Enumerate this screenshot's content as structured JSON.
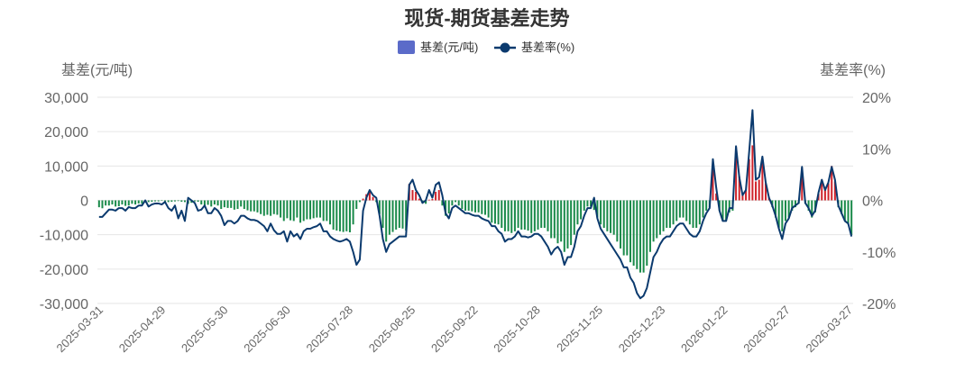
{
  "chart_data": {
    "type": "bar+line",
    "title": "现货-期货基差走势",
    "legend": {
      "placement": "top-center",
      "items": [
        {
          "label": "基差(元/吨)",
          "kind": "bar"
        },
        {
          "label": "基差率(%)",
          "kind": "line"
        }
      ]
    },
    "y_left": {
      "name": "基差(元/吨)",
      "range": [
        -30000,
        30000
      ],
      "ticks": [
        "30,000",
        "20,000",
        "10,000",
        "0",
        "-10,000",
        "-20,000",
        "-30,000"
      ]
    },
    "y_right": {
      "name": "基差率(%)",
      "range": [
        -20,
        20
      ],
      "ticks": [
        "20%",
        "10%",
        "0%",
        "-10%",
        "-20%"
      ]
    },
    "x_ticks": [
      "2025-03-31",
      "2025-04-29",
      "2025-05-30",
      "2025-06-30",
      "2025-07-28",
      "2025-08-25",
      "2025-09-22",
      "2025-10-28",
      "2025-11-25",
      "2025-12-23",
      "2026-01-22",
      "2026-02-27",
      "2026-03-27"
    ],
    "colors": {
      "positive_bar": "#d0242b",
      "negative_bar": "#1a8a4a",
      "line": "#0b3a6e",
      "legend_bar": "#5b6bc9"
    },
    "series": [
      {
        "name": "基差(元/吨)",
        "type": "bar",
        "values": [
          -2000,
          -2300,
          -1500,
          -1500,
          -1200,
          -1800,
          -1700,
          -1200,
          -1600,
          -1500,
          -1000,
          -1200,
          -900,
          -1000,
          -600,
          -500,
          -400,
          -300,
          -300,
          -100,
          -300,
          -500,
          -400,
          -300,
          -200,
          -400,
          -500,
          -1000,
          -700,
          -300,
          -400,
          -1200,
          -1500,
          -1300,
          -1800,
          -1200,
          -1500,
          -2500,
          -2000,
          -2200,
          -2200,
          -2700,
          -2500,
          -1800,
          -2500,
          -2900,
          -3200,
          -3200,
          -3500,
          -4000,
          -4500,
          -4200,
          -4500,
          -4000,
          -4200,
          -5000,
          -6000,
          -5200,
          -5800,
          -6000,
          -5000,
          -6500,
          -6000,
          -5500,
          -5500,
          -5200,
          -5000,
          -5000,
          -6000,
          -6000,
          -7000,
          -8500,
          -8800,
          -9000,
          -9200,
          -9000,
          -9300,
          -7000,
          -2500,
          -500,
          500,
          1800,
          2500,
          1000,
          -500,
          -4000,
          -8000,
          -12000,
          -10000,
          -9200,
          -8500,
          -8000,
          -8200,
          -8800,
          4800,
          3000,
          2500,
          500,
          -500,
          -1000,
          200,
          400,
          2500,
          3000,
          -1500,
          -4500,
          -3800,
          -1500,
          -500,
          -1500,
          -2500,
          -3000,
          -3000,
          -3200,
          -3500,
          -3500,
          -4000,
          -4200,
          -5000,
          -6500,
          -6800,
          -7000,
          -8000,
          -9000,
          -9000,
          -9500,
          -9000,
          -8000,
          -8500,
          -8500,
          -8800,
          -9500,
          -9000,
          -8500,
          -8000,
          -8000,
          -9000,
          -11000,
          -11000,
          -12500,
          -12000,
          -15000,
          -14000,
          -13000,
          -10000,
          -7000,
          -5500,
          -3000,
          -1800,
          -1800,
          -2800,
          -5000,
          -7000,
          -8000,
          -9000,
          -9500,
          -10000,
          -12000,
          -14000,
          -16000,
          -16000,
          -18000,
          -19000,
          -20000,
          -21000,
          -21000,
          -19000,
          -15000,
          -12000,
          -11000,
          -10000,
          -9000,
          -8000,
          -8000,
          -7000,
          -6000,
          -5000,
          -5000,
          -6000,
          -7000,
          -8000,
          -8000,
          -7000,
          -5000,
          -3000,
          -2000,
          10000,
          2000,
          -3000,
          -6000,
          -6000,
          -3500,
          -3000,
          15500,
          7000,
          2000,
          3000,
          12000,
          16000,
          5500,
          6000,
          11000,
          5000,
          1000,
          -2000,
          -5000,
          -8000,
          -9000,
          -6000,
          -5000,
          -3000,
          -2000,
          -1000,
          9500,
          -1000,
          -3000,
          -5000,
          -3500,
          2000,
          6000,
          3000,
          5000,
          10000,
          5500,
          -2000,
          -4000,
          -6000,
          -7000,
          -10000
        ]
      },
      {
        "name": "基差率(%)",
        "type": "line",
        "values": [
          -3.2,
          -3.2,
          -2.5,
          -1.8,
          -1.8,
          -2.0,
          -1.5,
          -1.5,
          -2.0,
          -1.3,
          -1.5,
          -1.5,
          -1.0,
          -1.0,
          0.0,
          -1.2,
          -0.8,
          -0.6,
          -0.6,
          -0.8,
          -0.3,
          -1.5,
          -2.0,
          -1.0,
          -3.5,
          -2.0,
          -4.0,
          0.5,
          0.0,
          -0.5,
          -2.0,
          -1.8,
          -1.0,
          -2.5,
          -2.5,
          -1.5,
          -2.0,
          -3.0,
          -4.8,
          -4.0,
          -4.0,
          -4.5,
          -4.0,
          -3.0,
          -3.0,
          -3.5,
          -3.8,
          -3.8,
          -4.0,
          -4.5,
          -5.0,
          -6.0,
          -4.5,
          -5.8,
          -6.5,
          -6.5,
          -6.0,
          -8.0,
          -6.0,
          -7.0,
          -6.5,
          -7.5,
          -6.0,
          -5.5,
          -5.5,
          -5.2,
          -5.0,
          -4.5,
          -6.0,
          -6.0,
          -7.0,
          -7.5,
          -7.8,
          -8.0,
          -7.8,
          -7.5,
          -8.0,
          -10.0,
          -12.5,
          -11.5,
          -2.0,
          0.5,
          2.0,
          1.0,
          0.5,
          -3.0,
          -7.5,
          -10.0,
          -8.5,
          -8.0,
          -7.5,
          -7.0,
          -7.0,
          -7.0,
          3.0,
          4.0,
          2.0,
          1.0,
          -0.5,
          0.0,
          2.0,
          0.5,
          3.0,
          3.5,
          1.0,
          -2.5,
          -3.5,
          -1.5,
          -1.0,
          -1.5,
          -2.0,
          -2.5,
          -2.5,
          -2.8,
          -3.0,
          -3.0,
          -3.5,
          -3.8,
          -4.0,
          -5.0,
          -5.0,
          -6.0,
          -6.5,
          -8.0,
          -7.5,
          -7.5,
          -7.0,
          -6.0,
          -7.0,
          -7.0,
          -7.2,
          -7.0,
          -6.5,
          -6.5,
          -7.0,
          -8.0,
          -9.0,
          -10.5,
          -9.5,
          -9.0,
          -10.0,
          -12.5,
          -11.0,
          -11.0,
          -9.0,
          -6.0,
          -5.0,
          -3.0,
          -1.5,
          -1.5,
          0.5,
          -3.5,
          -5.5,
          -6.5,
          -7.5,
          -8.5,
          -9.5,
          -10.5,
          -11.5,
          -13.0,
          -13.0,
          -15.0,
          -16.0,
          -18.0,
          -19.0,
          -18.5,
          -17.0,
          -14.0,
          -11.0,
          -10.0,
          -8.5,
          -7.5,
          -7.0,
          -7.0,
          -6.0,
          -5.0,
          -4.5,
          -4.5,
          -5.5,
          -6.5,
          -7.0,
          -7.0,
          -6.0,
          -4.0,
          -2.5,
          -1.5,
          8.0,
          2.5,
          -2.0,
          -4.0,
          -4.0,
          -1.5,
          -1.5,
          10.5,
          4.5,
          1.0,
          2.0,
          9.5,
          17.5,
          4.0,
          4.5,
          8.5,
          3.5,
          0.5,
          -1.0,
          -3.0,
          -5.5,
          -7.5,
          -4.5,
          -3.5,
          -1.5,
          -1.0,
          -0.5,
          6.5,
          -0.5,
          -1.5,
          -3.0,
          -2.0,
          1.5,
          4.0,
          2.0,
          3.5,
          6.5,
          4.0,
          -1.0,
          -2.5,
          -4.0,
          -4.5,
          -7.0
        ]
      }
    ]
  }
}
